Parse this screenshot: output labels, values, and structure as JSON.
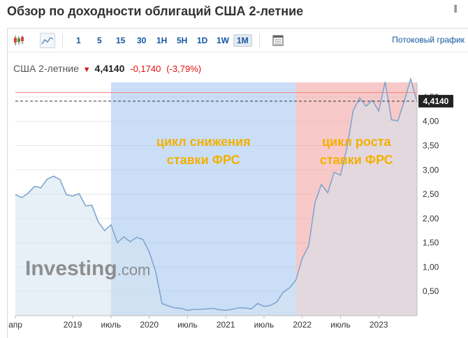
{
  "page": {
    "title": "Обзор по доходности облигаций США 2-летние"
  },
  "toolbar": {
    "candles_icon": "candlestick-icon",
    "area_icon": "area-chart-icon",
    "timeframes": [
      "1",
      "5",
      "15",
      "30",
      "1H",
      "5H",
      "1D",
      "1W",
      "1M"
    ],
    "active_timeframe": "1M",
    "layout_icon": "chart-layout-icon",
    "stream_label": "Потоковый график"
  },
  "quote": {
    "name": "США 2-летние",
    "arrow_icon": "arrow-down-icon",
    "last": "4,4140",
    "change": "-0,1740",
    "change_pct": "(-3,79%)"
  },
  "watermark": {
    "brand": "Investing",
    "suffix": ".com"
  },
  "chart_data": {
    "type": "area",
    "ylim": [
      0,
      4.8
    ],
    "yticks": [
      {
        "value": 0.5,
        "label": "0,50"
      },
      {
        "value": 1.0,
        "label": "1,00"
      },
      {
        "value": 1.5,
        "label": "1,50"
      },
      {
        "value": 2.0,
        "label": "2,00"
      },
      {
        "value": 2.5,
        "label": "2,50"
      },
      {
        "value": 3.0,
        "label": "3,00"
      },
      {
        "value": 3.5,
        "label": "3,50"
      },
      {
        "value": 4.0,
        "label": "4,00"
      },
      {
        "value": 4.5,
        "label": "4,50"
      }
    ],
    "xlim": [
      "2018-04",
      "2023-07"
    ],
    "xticks": [
      {
        "date": "2018-04",
        "label": "апр"
      },
      {
        "date": "2019-01",
        "label": "2019"
      },
      {
        "date": "2019-07",
        "label": "июль"
      },
      {
        "date": "2020-01",
        "label": "2020"
      },
      {
        "date": "2020-07",
        "label": "июль"
      },
      {
        "date": "2021-01",
        "label": "2021"
      },
      {
        "date": "2021-07",
        "label": "июль"
      },
      {
        "date": "2022-01",
        "label": "2022"
      },
      {
        "date": "2022-07",
        "label": "июль"
      },
      {
        "date": "2023-01",
        "label": "2023"
      }
    ],
    "current_value": 4.414,
    "current_label": "4,4140",
    "reference_line_value": 4.59,
    "series": [
      {
        "x": [
          "2018-04",
          "2018-05",
          "2018-06",
          "2018-07",
          "2018-08",
          "2018-09",
          "2018-10",
          "2018-11",
          "2018-12",
          "2019-01",
          "2019-02",
          "2019-03",
          "2019-04",
          "2019-05",
          "2019-06",
          "2019-07",
          "2019-08",
          "2019-09",
          "2019-10",
          "2019-11",
          "2019-12",
          "2020-01",
          "2020-02",
          "2020-03",
          "2020-04",
          "2020-05",
          "2020-06",
          "2020-07",
          "2020-08",
          "2020-09",
          "2020-10",
          "2020-11",
          "2020-12",
          "2021-01",
          "2021-02",
          "2021-03",
          "2021-04",
          "2021-05",
          "2021-06",
          "2021-07",
          "2021-08",
          "2021-09",
          "2021-10",
          "2021-11",
          "2021-12",
          "2022-01",
          "2022-02",
          "2022-03",
          "2022-04",
          "2022-05",
          "2022-06",
          "2022-07",
          "2022-08",
          "2022-09",
          "2022-10",
          "2022-11",
          "2022-12",
          "2023-01",
          "2023-02",
          "2023-03",
          "2023-04",
          "2023-05",
          "2023-06",
          "2023-07"
        ],
        "y": [
          2.49,
          2.43,
          2.52,
          2.66,
          2.63,
          2.81,
          2.87,
          2.8,
          2.49,
          2.46,
          2.51,
          2.26,
          2.27,
          1.93,
          1.75,
          1.87,
          1.5,
          1.62,
          1.52,
          1.61,
          1.57,
          1.31,
          0.91,
          0.25,
          0.2,
          0.16,
          0.15,
          0.11,
          0.13,
          0.13,
          0.14,
          0.15,
          0.12,
          0.11,
          0.13,
          0.16,
          0.16,
          0.14,
          0.25,
          0.19,
          0.21,
          0.28,
          0.48,
          0.57,
          0.73,
          1.18,
          1.43,
          2.33,
          2.7,
          2.53,
          2.95,
          2.89,
          3.45,
          4.22,
          4.48,
          4.31,
          4.43,
          4.21,
          4.81,
          4.03,
          4.01,
          4.41,
          4.87,
          4.41
        ]
      }
    ],
    "annotations": [
      {
        "label": "цикл снижения ставки ФРС",
        "from": "2019-07",
        "to": "2021-12",
        "color": "#a9c8f2"
      },
      {
        "label": "цикл роста ставки ФРС",
        "from": "2021-12",
        "to": "2023-07",
        "color": "#f2a5a5"
      }
    ],
    "colors": {
      "line": "#7fa6cf",
      "area": "#d6e4f0",
      "label_text": "#f2b000",
      "grid": "#e6e6e6"
    }
  }
}
